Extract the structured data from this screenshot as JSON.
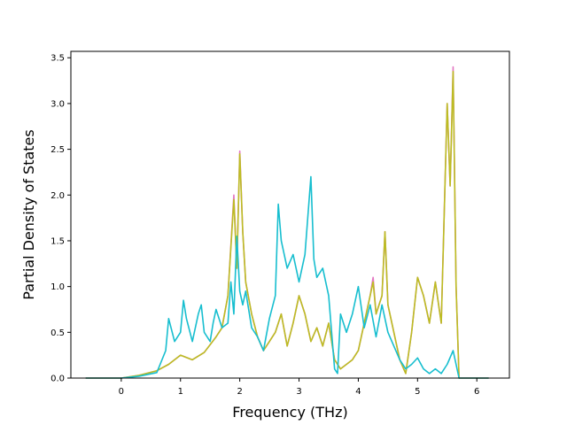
{
  "chart_data": {
    "type": "line",
    "title": "",
    "xlabel": "Frequency (THz)",
    "ylabel": "Partial Density of States",
    "xlim": [
      -0.85,
      6.55
    ],
    "ylim": [
      0,
      3.57
    ],
    "xticks": [
      0,
      1,
      2,
      3,
      4,
      5,
      6
    ],
    "yticks": [
      0.0,
      0.5,
      1.0,
      1.5,
      2.0,
      2.5,
      3.0,
      3.5
    ],
    "xtick_labels": [
      "0",
      "1",
      "2",
      "3",
      "4",
      "5",
      "6"
    ],
    "ytick_labels": [
      "0.0",
      "0.5",
      "1.0",
      "1.5",
      "2.0",
      "2.5",
      "3.0",
      "3.5"
    ],
    "grid": false,
    "legend": "none",
    "series": [
      {
        "color": "#e377c2",
        "x": [
          -0.6,
          0.0,
          0.3,
          0.6,
          0.8,
          1.0,
          1.2,
          1.4,
          1.6,
          1.7,
          1.8,
          1.9,
          1.95,
          2.0,
          2.05,
          2.1,
          2.2,
          2.3,
          2.4,
          2.5,
          2.6,
          2.7,
          2.8,
          2.9,
          3.0,
          3.1,
          3.2,
          3.3,
          3.4,
          3.5,
          3.6,
          3.7,
          3.8,
          3.9,
          4.0,
          4.1,
          4.2,
          4.25,
          4.3,
          4.4,
          4.45,
          4.5,
          4.6,
          4.7,
          4.8,
          4.9,
          5.0,
          5.1,
          5.2,
          5.3,
          5.4,
          5.5,
          5.55,
          5.6,
          5.65,
          5.7,
          5.8,
          6.2
        ],
        "y": [
          0.0,
          0.0,
          0.03,
          0.08,
          0.15,
          0.25,
          0.2,
          0.28,
          0.45,
          0.55,
          0.9,
          2.0,
          1.2,
          2.48,
          1.6,
          1.05,
          0.7,
          0.45,
          0.3,
          0.4,
          0.5,
          0.7,
          0.35,
          0.6,
          0.9,
          0.7,
          0.4,
          0.55,
          0.35,
          0.6,
          0.2,
          0.1,
          0.15,
          0.2,
          0.3,
          0.6,
          0.9,
          1.1,
          0.7,
          0.9,
          1.6,
          0.8,
          0.5,
          0.2,
          0.05,
          0.5,
          1.1,
          0.9,
          0.6,
          1.05,
          0.6,
          3.0,
          2.1,
          3.4,
          1.0,
          0.0,
          0.0,
          0.0
        ]
      },
      {
        "color": "#bcbd22",
        "x": [
          -0.6,
          0.0,
          0.3,
          0.6,
          0.8,
          1.0,
          1.2,
          1.4,
          1.6,
          1.7,
          1.8,
          1.9,
          1.95,
          2.0,
          2.05,
          2.1,
          2.2,
          2.3,
          2.4,
          2.5,
          2.6,
          2.7,
          2.8,
          2.9,
          3.0,
          3.1,
          3.2,
          3.3,
          3.4,
          3.5,
          3.6,
          3.7,
          3.8,
          3.9,
          4.0,
          4.1,
          4.2,
          4.25,
          4.3,
          4.4,
          4.45,
          4.5,
          4.6,
          4.7,
          4.8,
          4.9,
          5.0,
          5.1,
          5.2,
          5.3,
          5.4,
          5.5,
          5.55,
          5.6,
          5.65,
          5.7,
          5.8,
          6.2
        ],
        "y": [
          0.0,
          0.0,
          0.03,
          0.08,
          0.15,
          0.25,
          0.2,
          0.28,
          0.45,
          0.55,
          0.9,
          1.95,
          1.2,
          2.45,
          1.6,
          1.05,
          0.7,
          0.45,
          0.3,
          0.4,
          0.5,
          0.7,
          0.35,
          0.6,
          0.9,
          0.7,
          0.4,
          0.55,
          0.35,
          0.6,
          0.2,
          0.1,
          0.15,
          0.2,
          0.3,
          0.6,
          0.9,
          1.05,
          0.7,
          0.9,
          1.6,
          0.8,
          0.5,
          0.2,
          0.05,
          0.5,
          1.1,
          0.9,
          0.6,
          1.05,
          0.6,
          3.0,
          2.1,
          3.35,
          1.0,
          0.0,
          0.0,
          0.0
        ]
      },
      {
        "color": "#17becf",
        "x": [
          -0.6,
          0.0,
          0.3,
          0.6,
          0.75,
          0.8,
          0.9,
          1.0,
          1.05,
          1.1,
          1.2,
          1.3,
          1.35,
          1.4,
          1.5,
          1.55,
          1.6,
          1.7,
          1.8,
          1.85,
          1.9,
          1.95,
          2.0,
          2.05,
          2.1,
          2.2,
          2.3,
          2.4,
          2.5,
          2.6,
          2.65,
          2.7,
          2.8,
          2.9,
          3.0,
          3.1,
          3.2,
          3.25,
          3.3,
          3.4,
          3.5,
          3.6,
          3.65,
          3.7,
          3.8,
          3.9,
          4.0,
          4.1,
          4.2,
          4.3,
          4.4,
          4.5,
          4.6,
          4.7,
          4.8,
          4.9,
          5.0,
          5.1,
          5.2,
          5.3,
          5.4,
          5.5,
          5.6,
          5.7,
          5.8,
          6.2
        ],
        "y": [
          0.0,
          0.0,
          0.02,
          0.06,
          0.3,
          0.65,
          0.4,
          0.5,
          0.85,
          0.65,
          0.4,
          0.7,
          0.8,
          0.5,
          0.4,
          0.6,
          0.75,
          0.55,
          0.6,
          1.05,
          0.7,
          1.55,
          0.95,
          0.8,
          0.95,
          0.55,
          0.45,
          0.3,
          0.65,
          0.9,
          1.9,
          1.5,
          1.2,
          1.35,
          1.05,
          1.35,
          2.2,
          1.3,
          1.1,
          1.2,
          0.9,
          0.1,
          0.05,
          0.7,
          0.5,
          0.7,
          1.0,
          0.55,
          0.8,
          0.45,
          0.8,
          0.5,
          0.35,
          0.2,
          0.1,
          0.15,
          0.22,
          0.1,
          0.05,
          0.1,
          0.05,
          0.15,
          0.3,
          0.0,
          0.0,
          0.0
        ]
      }
    ]
  }
}
